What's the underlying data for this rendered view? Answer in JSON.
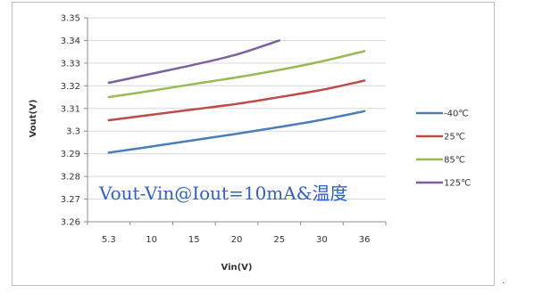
{
  "chart_data": {
    "type": "line",
    "title": "",
    "xlabel": "Vin(V)",
    "ylabel": "Vout(V)",
    "categories": [
      "5.3",
      "10",
      "15",
      "20",
      "25",
      "30",
      "36"
    ],
    "ylim": [
      3.26,
      3.35
    ],
    "yticks": [
      "3.26",
      "3.27",
      "3.28",
      "3.29",
      "3.3",
      "3.31",
      "3.32",
      "3.33",
      "3.34",
      "3.35"
    ],
    "grid": true,
    "legend_position": "right",
    "annotation": "Vout-Vin@Iout=10mA&温度",
    "series": [
      {
        "name": "-40℃",
        "color": "#4a7ebb",
        "values": [
          3.2905,
          3.2932,
          3.296,
          3.2988,
          3.3018,
          3.305,
          3.3088
        ]
      },
      {
        "name": "25℃",
        "color": "#be4b48",
        "values": [
          3.3048,
          3.3072,
          3.3096,
          3.312,
          3.315,
          3.3182,
          3.3223
        ]
      },
      {
        "name": "85℃",
        "color": "#98b954",
        "values": [
          3.315,
          3.3178,
          3.3208,
          3.3237,
          3.327,
          3.3308,
          3.3353
        ]
      },
      {
        "name": "125℃",
        "color": "#7d60a0",
        "values": [
          3.3213,
          3.3253,
          3.3293,
          3.3338,
          3.34,
          null,
          null
        ]
      }
    ]
  }
}
